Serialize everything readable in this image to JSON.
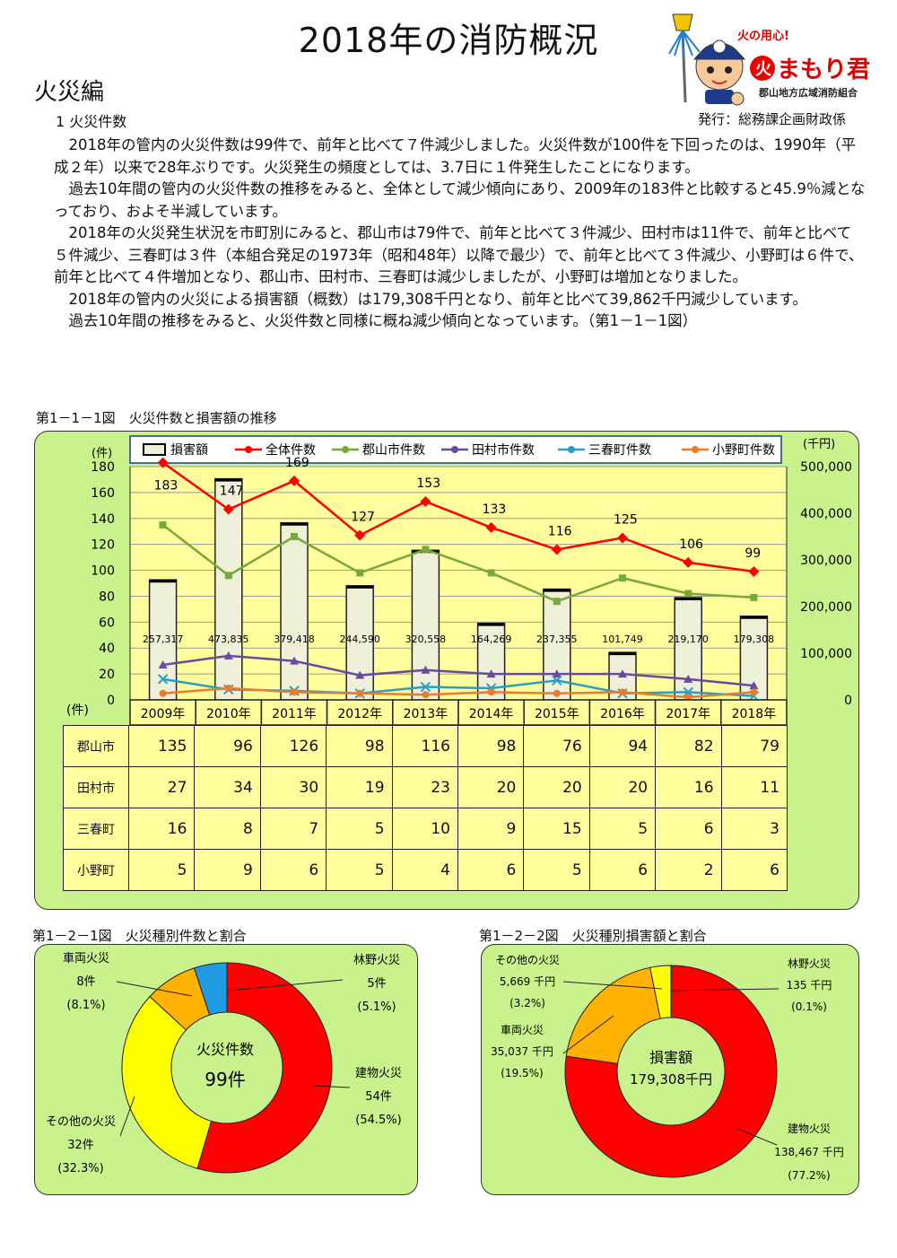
{
  "title": "2018年の消防概況",
  "section": "火災編",
  "subsection": "1 火災件数",
  "publisher": "発行：総務課企画財政係",
  "logo": {
    "tagline": "火の用心!",
    "name": "まもり君",
    "org": "郡山地方広域消防組合"
  },
  "paragraphs": [
    "2018年の管内の火災件数は99件で、前年と比べて７件減少しました。火災件数が100件を下回ったのは、1990年（平成２年）以来で28年ぶりです。火災発生の頻度としては、3.7日に１件発生したことになります。",
    "過去10年間の管内の火災件数の推移をみると、全体として減少傾向にあり、2009年の183件と比較すると45.9％減となっており、およそ半減しています。",
    "2018年の火災発生状況を市町別にみると、郡山市は79件で、前年と比べて３件減少、田村市は11件で、前年と比べて５件減少、三春町は３件（本組合発足の1973年（昭和48年）以降で最少）で、前年と比べて３件減少、小野町は６件で、前年と比べて４件増加となり、郡山市、田村市、三春町は減少しましたが、小野町は増加となりました。",
    "2018年の管内の火災による損害額（概数）は179,308千円となり、前年と比べて39,862千円減少しています。",
    "過去10年間の推移をみると、火災件数と同様に概ね減少傾向となっています。（第1－1－1図）"
  ],
  "fig1_caption": "第1－1－1図　火災件数と損害額の推移",
  "fig2_caption": "第1－2－1図　火災種別件数と割合",
  "fig3_caption": "第1－2－2図　火災種別損害額と割合",
  "colors": {
    "panel": "#c9f28c",
    "plot": "#fffd9c",
    "total": "#ff0000",
    "koriyama": "#77a83a",
    "tamura": "#6a4a9c",
    "miharu": "#2a9fbf",
    "ono": "#ec7b2b"
  },
  "chart_data": [
    {
      "type": "bar+line",
      "categories": [
        "2009年",
        "2010年",
        "2011年",
        "2012年",
        "2013年",
        "2014年",
        "2015年",
        "2016年",
        "2017年",
        "2018年"
      ],
      "left_axis_label": "(件)",
      "left_axis_bottom_label": "(件)",
      "right_axis_label": "(千円)",
      "ylim_left": [
        0,
        180
      ],
      "yticks_left": [
        0,
        20,
        40,
        60,
        80,
        100,
        120,
        140,
        160,
        180
      ],
      "ylim_right": [
        0,
        500000
      ],
      "yticks_right": [
        "0",
        "100,000",
        "200,000",
        "300,000",
        "400,000",
        "500,000"
      ],
      "grid": true,
      "legend_position": "top",
      "bars": {
        "name": "損害額",
        "values": [
          257317,
          473835,
          379418,
          244590,
          320558,
          164269,
          237355,
          101749,
          219170,
          179308
        ],
        "labels": [
          "257,317",
          "473,835",
          "379,418",
          "244,590",
          "320,558",
          "164,269",
          "237,355",
          "101,749",
          "219,170",
          "179,308"
        ]
      },
      "series": [
        {
          "name": "全体件数",
          "values": [
            183,
            147,
            169,
            127,
            153,
            133,
            116,
            125,
            106,
            99
          ]
        },
        {
          "name": "郡山市件数",
          "values": [
            135,
            96,
            126,
            98,
            116,
            98,
            76,
            94,
            82,
            79
          ]
        },
        {
          "name": "田村市件数",
          "values": [
            27,
            34,
            30,
            19,
            23,
            20,
            20,
            20,
            16,
            11
          ]
        },
        {
          "name": "三春町件数",
          "values": [
            16,
            8,
            7,
            5,
            10,
            9,
            15,
            5,
            6,
            3
          ]
        },
        {
          "name": "小野町件数",
          "values": [
            5,
            9,
            6,
            5,
            4,
            6,
            5,
            6,
            2,
            6
          ]
        }
      ],
      "table_rows": [
        {
          "label": "郡山市",
          "values": [
            "135",
            "96",
            "126",
            "98",
            "116",
            "98",
            "76",
            "94",
            "82",
            "79"
          ]
        },
        {
          "label": "田村市",
          "values": [
            "27",
            "34",
            "30",
            "19",
            "23",
            "20",
            "20",
            "20",
            "16",
            "11"
          ]
        },
        {
          "label": "三春町",
          "values": [
            "16",
            "8",
            "7",
            "5",
            "10",
            "9",
            "15",
            "5",
            "6",
            "3"
          ]
        },
        {
          "label": "小野町",
          "values": [
            "5",
            "9",
            "6",
            "5",
            "4",
            "6",
            "5",
            "6",
            "2",
            "6"
          ]
        }
      ]
    },
    {
      "type": "pie",
      "center_title": "火災件数",
      "center_value": "99件",
      "slices": [
        {
          "name": "林野火災",
          "value": 5,
          "count": "5件",
          "percent": "(5.1%)",
          "color": "#1e9be3"
        },
        {
          "name": "建物火災",
          "value": 54,
          "count": "54件",
          "percent": "(54.5%)",
          "color": "#ff0000"
        },
        {
          "name": "その他の火災",
          "value": 32,
          "count": "32件",
          "percent": "(32.3%)",
          "color": "#ffff00"
        },
        {
          "name": "車両火災",
          "value": 8,
          "count": "8件",
          "percent": "(8.1%)",
          "color": "#ffb300"
        }
      ]
    },
    {
      "type": "pie",
      "center_title": "損害額",
      "center_value": "179,308千円",
      "slices": [
        {
          "name": "林野火災",
          "value": 135,
          "count": "135 千円",
          "percent": "(0.1%)",
          "color": "#1e9be3"
        },
        {
          "name": "建物火災",
          "value": 138467,
          "count": "138,467 千円",
          "percent": "(77.2%)",
          "color": "#ff0000"
        },
        {
          "name": "車両火災",
          "value": 35037,
          "count": "35,037 千円",
          "percent": "(19.5%)",
          "color": "#ffb300"
        },
        {
          "name": "その他の火災",
          "value": 5669,
          "count": "5,669 千円",
          "percent": "(3.2%)",
          "color": "#ffff00"
        }
      ]
    }
  ]
}
